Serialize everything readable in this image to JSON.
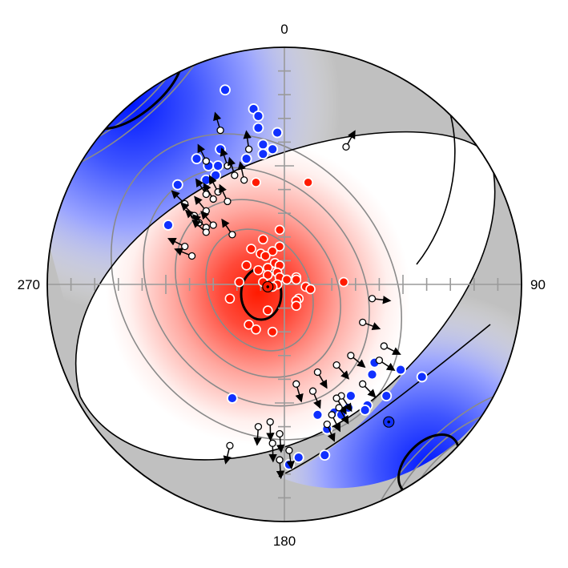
{
  "stereonet": {
    "labels": {
      "north": "0",
      "east": "90",
      "south": "180",
      "west": "270"
    },
    "colors": {
      "compression": "#ff1a00",
      "extension": "#1030ff",
      "contour": "#8a8a8a",
      "outside": "#c0c0c0",
      "plane": "#000000",
      "grid": "#9a9a9a"
    },
    "red_points": [
      [
        -12,
        -43
      ],
      [
        10,
        -43
      ],
      [
        -2,
        -23
      ],
      [
        -9,
        -19
      ],
      [
        -2,
        -16
      ],
      [
        -14,
        -15
      ],
      [
        -5,
        -14
      ],
      [
        -10,
        -13
      ],
      [
        -8,
        -12
      ],
      [
        -4,
        -9
      ],
      [
        -16,
        -8
      ],
      [
        -2,
        -8
      ],
      [
        -7,
        -7
      ],
      [
        -11,
        -6
      ],
      [
        -3,
        -5
      ],
      [
        -7,
        -4
      ],
      [
        -2,
        -3
      ],
      [
        5,
        -3
      ],
      [
        -19,
        -1
      ],
      [
        -9,
        -1
      ],
      [
        1,
        -2
      ],
      [
        5,
        -2
      ],
      [
        25,
        -1
      ],
      [
        -3,
        0
      ],
      [
        9,
        1
      ],
      [
        -5,
        1
      ],
      [
        11,
        2
      ],
      [
        -23,
        6
      ],
      [
        6,
        6
      ],
      [
        5,
        7
      ],
      [
        5,
        9
      ],
      [
        -7,
        11
      ],
      [
        -15,
        17
      ],
      [
        -12,
        19
      ],
      [
        -5,
        20
      ]
    ],
    "blue_points": [
      [
        -25,
        -82
      ],
      [
        -13,
        -74
      ],
      [
        -11,
        -71
      ],
      [
        -11,
        -66
      ],
      [
        -3,
        -64
      ],
      [
        -9,
        -59
      ],
      [
        -27,
        -57
      ],
      [
        -5,
        -57
      ],
      [
        -37,
        -53
      ],
      [
        -16,
        -53
      ],
      [
        -32,
        -50
      ],
      [
        -29,
        -46
      ],
      [
        -33,
        -44
      ],
      [
        -45,
        -42
      ],
      [
        -49,
        -25
      ],
      [
        -28,
        -50
      ],
      [
        -9,
        -55
      ],
      [
        38,
        33
      ],
      [
        49,
        36
      ],
      [
        37,
        38
      ],
      [
        58,
        39
      ],
      [
        28,
        47
      ],
      [
        43,
        47
      ],
      [
        35,
        51
      ],
      [
        27,
        52
      ],
      [
        34,
        53
      ],
      [
        21,
        54
      ],
      [
        14,
        55
      ],
      [
        24,
        55
      ],
      [
        6,
        73
      ],
      [
        2,
        76
      ],
      [
        18,
        61
      ],
      [
        17,
        72
      ],
      [
        -22,
        48
      ]
    ],
    "vector_points": [
      [
        -27,
        -65
      ],
      [
        -15,
        -57
      ],
      [
        -33,
        -52
      ],
      [
        -24,
        -50
      ],
      [
        -21,
        -46
      ],
      [
        -17,
        -44
      ],
      [
        -28,
        -39
      ],
      [
        -33,
        -38
      ],
      [
        -30,
        -36
      ],
      [
        -24,
        -35
      ],
      [
        -42,
        -34
      ],
      [
        -38,
        -29
      ],
      [
        -33,
        -31
      ],
      [
        -36,
        -26
      ],
      [
        -30,
        -25
      ],
      [
        -33,
        -24
      ],
      [
        -33,
        -22
      ],
      [
        -22,
        -21
      ],
      [
        -42,
        -16
      ],
      [
        -39,
        -12
      ],
      [
        26,
        -58
      ],
      [
        37,
        6
      ],
      [
        33,
        16
      ],
      [
        42,
        26
      ],
      [
        28,
        30
      ],
      [
        22,
        34
      ],
      [
        40,
        32
      ],
      [
        33,
        42
      ],
      [
        14,
        37
      ],
      [
        12,
        45
      ],
      [
        5,
        42
      ],
      [
        24,
        47
      ],
      [
        22,
        48
      ],
      [
        23,
        52
      ],
      [
        20,
        55
      ],
      [
        18,
        59
      ],
      [
        -2,
        63
      ],
      [
        -5,
        67
      ],
      [
        -11,
        60
      ],
      [
        2,
        70
      ],
      [
        -2,
        74
      ],
      [
        -23,
        68
      ],
      [
        -6,
        58
      ]
    ],
    "pole_compression": [
      -7,
      1
    ],
    "pole_extension": [
      44,
      58
    ],
    "pole_extension_offscreen": [
      -52,
      -67
    ]
  }
}
